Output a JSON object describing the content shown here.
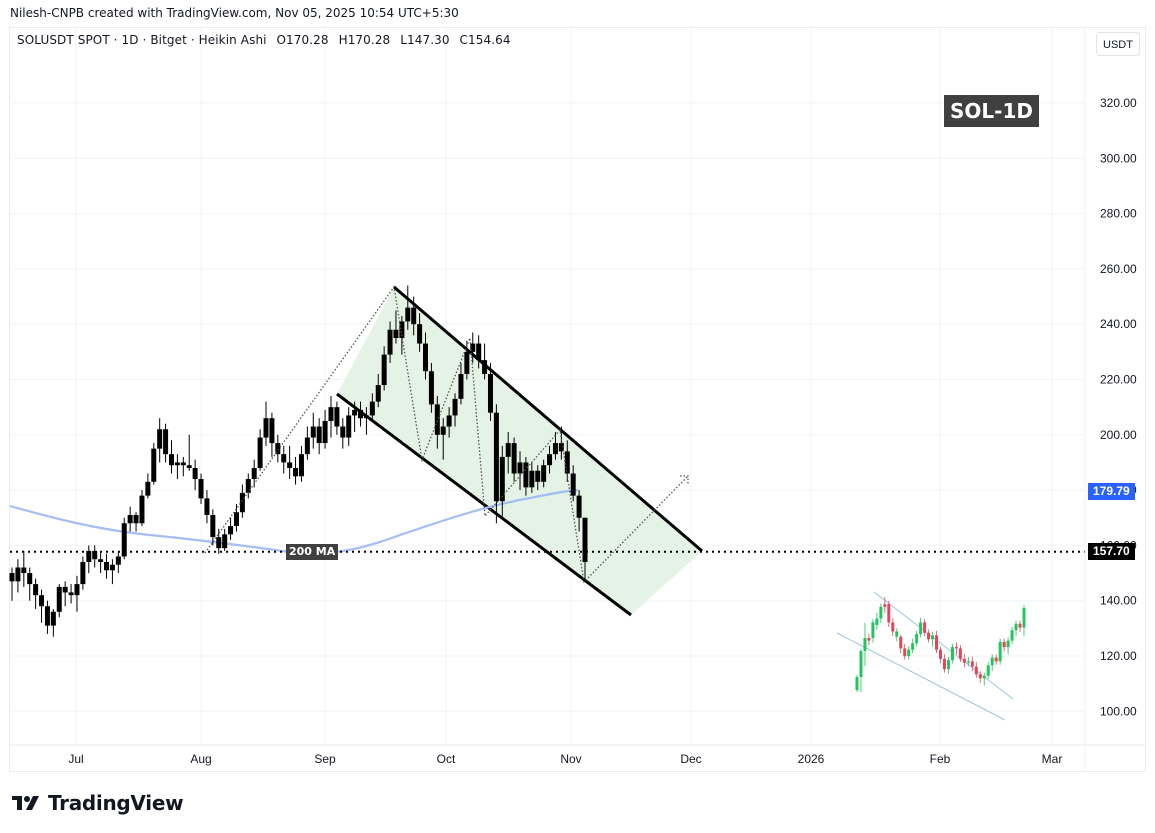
{
  "credit": "Nilesh-CNPB created with TradingView.com, Nov 05, 2025 10:54 UTC+5:30",
  "legend": {
    "symbol": "SOLUSDT SPOT · 1D · Bitget · Heikin Ashi",
    "open": "O170.28",
    "high": "H170.28",
    "low": "L147.30",
    "close": "C154.64"
  },
  "currency_button": "USDT",
  "badge": "SOL-1D",
  "ma_label": "200 MA",
  "price_tags": {
    "ma": "179.79",
    "last": "157.70"
  },
  "footer": {
    "brand": "TradingView",
    "logo_icon": "tradingview-logo-icon"
  },
  "colors": {
    "candle": "#000000",
    "ma_line": "#a4bdf5",
    "channel_fill": "#e3f2e4",
    "channel_line": "#000000",
    "ma_tag": "#2962ff",
    "last_tag": "#000000",
    "bull": "#22c55e",
    "bear": "#e0485a",
    "inset_line": "#9ec5e0"
  },
  "chart_data": {
    "type": "candlestick",
    "title": "SOLUSDT SPOT · 1D · Bitget · Heikin Ashi",
    "xlabel": "",
    "ylabel": "USDT",
    "ylim": [
      90,
      340
    ],
    "grid": true,
    "y_ticks": [
      100,
      120,
      140,
      160,
      180,
      200,
      220,
      240,
      260,
      280,
      300,
      320
    ],
    "y_tick_labels": [
      "100.00",
      "120.00",
      "140.00",
      "160.00",
      "180.00",
      "200.00",
      "220.00",
      "240.00",
      "260.00",
      "280.00",
      "300.00",
      "320.00"
    ],
    "x_tick_labels": [
      "Jul",
      "Aug",
      "Sep",
      "Oct",
      "Nov",
      "Dec",
      "2026",
      "Feb",
      "Mar"
    ],
    "last_ohlc": {
      "open": 170.28,
      "high": 170.28,
      "low": 147.3,
      "close": 154.64
    },
    "horizontal_level": 157.7,
    "ma200_value": 179.79,
    "annotations": [
      "SOL-1D",
      "200 MA",
      "Descending channel (falling wedge/channel) from ~254 peak in mid-Sep",
      "Projected breakout arrow toward ~185",
      "Inset: historical falling-wedge breakout pattern (Dec–Feb fractal)"
    ],
    "channel": {
      "upper": [
        {
          "date": "2025-09-17",
          "price": 254
        },
        {
          "date": "2025-12-03",
          "price": 158
        }
      ],
      "lower": [
        {
          "date": "2025-09-05",
          "price": 215
        },
        {
          "date": "2025-11-15",
          "price": 136
        }
      ]
    },
    "ma200": [
      {
        "date": "2025-06-17",
        "price": 175
      },
      {
        "date": "2025-07-01",
        "price": 168
      },
      {
        "date": "2025-07-15",
        "price": 164
      },
      {
        "date": "2025-08-01",
        "price": 163
      },
      {
        "date": "2025-08-15",
        "price": 160
      },
      {
        "date": "2025-09-01",
        "price": 158
      },
      {
        "date": "2025-09-15",
        "price": 164
      },
      {
        "date": "2025-10-01",
        "price": 168
      },
      {
        "date": "2025-10-15",
        "price": 174
      },
      {
        "date": "2025-10-31",
        "price": 179.79
      }
    ],
    "series": [
      {
        "name": "SOLUSDT Heikin Ashi (approx)",
        "ohlc": [
          [
            150,
            152,
            140,
            147
          ],
          [
            147,
            155,
            143,
            152
          ],
          [
            152,
            158,
            145,
            150
          ],
          [
            150,
            152,
            140,
            146
          ],
          [
            146,
            148,
            137,
            142
          ],
          [
            142,
            144,
            132,
            138
          ],
          [
            138,
            140,
            128,
            131
          ],
          [
            131,
            137,
            127,
            136
          ],
          [
            136,
            146,
            134,
            145
          ],
          [
            145,
            147,
            138,
            143
          ],
          [
            143,
            146,
            139,
            142
          ],
          [
            142,
            149,
            136,
            146
          ],
          [
            146,
            156,
            144,
            154
          ],
          [
            154,
            160,
            150,
            158
          ],
          [
            158,
            160,
            152,
            155
          ],
          [
            155,
            158,
            150,
            154
          ],
          [
            154,
            157,
            148,
            151
          ],
          [
            151,
            155,
            146,
            153
          ],
          [
            153,
            158,
            150,
            156
          ],
          [
            156,
            170,
            155,
            168
          ],
          [
            168,
            174,
            165,
            171
          ],
          [
            171,
            172,
            165,
            168
          ],
          [
            168,
            180,
            167,
            178
          ],
          [
            178,
            186,
            177,
            183
          ],
          [
            183,
            197,
            182,
            195
          ],
          [
            195,
            206,
            190,
            202
          ],
          [
            202,
            204,
            190,
            193
          ],
          [
            193,
            198,
            186,
            189
          ],
          [
            189,
            193,
            184,
            190
          ],
          [
            190,
            192,
            185,
            189
          ],
          [
            189,
            200,
            187,
            188
          ],
          [
            188,
            191,
            180,
            184
          ],
          [
            184,
            186,
            175,
            177
          ],
          [
            177,
            180,
            168,
            171
          ],
          [
            171,
            173,
            160,
            163
          ],
          [
            163,
            166,
            157,
            159
          ],
          [
            159,
            166,
            158,
            164
          ],
          [
            164,
            170,
            162,
            167
          ],
          [
            167,
            175,
            165,
            172
          ],
          [
            172,
            182,
            170,
            179
          ],
          [
            179,
            186,
            177,
            184
          ],
          [
            184,
            191,
            181,
            188
          ],
          [
            188,
            202,
            187,
            199
          ],
          [
            199,
            212,
            196,
            206
          ],
          [
            206,
            208,
            192,
            197
          ],
          [
            197,
            200,
            190,
            193
          ],
          [
            193,
            196,
            186,
            190
          ],
          [
            190,
            196,
            184,
            188
          ],
          [
            188,
            192,
            182,
            185
          ],
          [
            185,
            196,
            183,
            193
          ],
          [
            193,
            203,
            191,
            199
          ],
          [
            199,
            208,
            195,
            203
          ],
          [
            203,
            206,
            193,
            197
          ],
          [
            197,
            209,
            195,
            205
          ],
          [
            205,
            214,
            199,
            210
          ],
          [
            210,
            212,
            200,
            203
          ],
          [
            203,
            206,
            195,
            199
          ],
          [
            199,
            210,
            196,
            207
          ],
          [
            207,
            212,
            201,
            209
          ],
          [
            209,
            212,
            203,
            206
          ],
          [
            206,
            210,
            200,
            207
          ],
          [
            207,
            215,
            205,
            212
          ],
          [
            212,
            222,
            210,
            218
          ],
          [
            218,
            232,
            216,
            229
          ],
          [
            229,
            241,
            226,
            238
          ],
          [
            238,
            245,
            233,
            235
          ],
          [
            235,
            243,
            229,
            241
          ],
          [
            241,
            254,
            238,
            246
          ],
          [
            246,
            250,
            236,
            240
          ],
          [
            240,
            244,
            230,
            233
          ],
          [
            233,
            237,
            220,
            223
          ],
          [
            223,
            226,
            208,
            211
          ],
          [
            211,
            214,
            195,
            200
          ],
          [
            200,
            206,
            191,
            203
          ],
          [
            203,
            210,
            199,
            207
          ],
          [
            207,
            215,
            203,
            213
          ],
          [
            213,
            226,
            211,
            222
          ],
          [
            222,
            234,
            220,
            230
          ],
          [
            230,
            237,
            226,
            233
          ],
          [
            233,
            236,
            224,
            227
          ],
          [
            227,
            233,
            220,
            222
          ],
          [
            222,
            226,
            205,
            208
          ],
          [
            208,
            211,
            168,
            176
          ],
          [
            176,
            196,
            170,
            192
          ],
          [
            192,
            201,
            186,
            197
          ],
          [
            197,
            199,
            183,
            186
          ],
          [
            186,
            194,
            180,
            190
          ],
          [
            190,
            192,
            178,
            181
          ],
          [
            181,
            190,
            179,
            187
          ],
          [
            187,
            189,
            180,
            183
          ],
          [
            183,
            191,
            181,
            189
          ],
          [
            189,
            196,
            186,
            193
          ],
          [
            193,
            201,
            191,
            197
          ],
          [
            197,
            203,
            191,
            194
          ],
          [
            194,
            198,
            183,
            186
          ],
          [
            186,
            189,
            176,
            178
          ],
          [
            178,
            180,
            165,
            170
          ],
          [
            170,
            170,
            147,
            154
          ]
        ]
      }
    ]
  }
}
